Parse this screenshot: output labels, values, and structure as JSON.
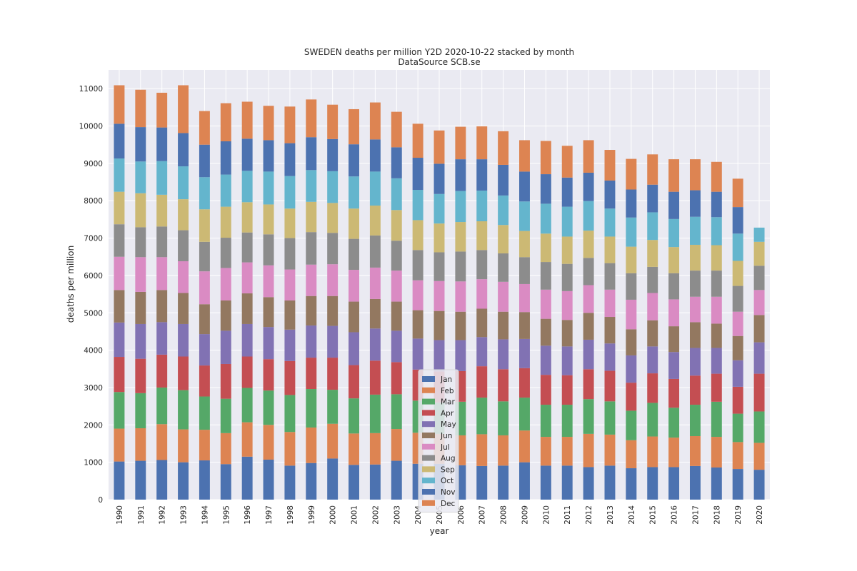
{
  "chart_data": {
    "type": "bar",
    "stacked": true,
    "title": "SWEDEN deaths per million Y2D 2020-10-22 stacked by month",
    "subtitle": "DataSource SCB.se",
    "xlabel": "year",
    "ylabel": "deaths per million",
    "ylim": [
      0,
      11500
    ],
    "yticks": [
      0,
      1000,
      2000,
      3000,
      4000,
      5000,
      6000,
      7000,
      8000,
      9000,
      10000,
      11000
    ],
    "grid": true,
    "legend_position": "bottom-center",
    "categories": [
      "1990",
      "1991",
      "1992",
      "1993",
      "1994",
      "1995",
      "1996",
      "1997",
      "1998",
      "1999",
      "2000",
      "2001",
      "2002",
      "2003",
      "2004",
      "2005",
      "2006",
      "2007",
      "2008",
      "2009",
      "2010",
      "2011",
      "2012",
      "2013",
      "2014",
      "2015",
      "2016",
      "2017",
      "2018",
      "2019",
      "2020"
    ],
    "series": [
      {
        "name": "Jan",
        "color": "#4c72b0",
        "values": [
          1020,
          1040,
          1060,
          1000,
          1050,
          950,
          1150,
          1070,
          910,
          980,
          1100,
          930,
          940,
          1040,
          960,
          960,
          920,
          900,
          910,
          1000,
          910,
          910,
          870,
          910,
          840,
          870,
          870,
          900,
          860,
          820,
          800
        ]
      },
      {
        "name": "Feb",
        "color": "#dd8452",
        "values": [
          880,
          870,
          960,
          880,
          820,
          830,
          920,
          930,
          900,
          950,
          930,
          840,
          840,
          850,
          830,
          800,
          800,
          850,
          810,
          850,
          770,
          770,
          890,
          830,
          750,
          820,
          790,
          800,
          820,
          720,
          720
        ]
      },
      {
        "name": "Mar",
        "color": "#55a868",
        "values": [
          980,
          940,
          980,
          1050,
          890,
          920,
          920,
          920,
          990,
          1030,
          910,
          940,
          1030,
          930,
          860,
          840,
          900,
          980,
          910,
          880,
          860,
          860,
          930,
          890,
          790,
          900,
          800,
          840,
          940,
          760,
          840
        ]
      },
      {
        "name": "Apr",
        "color": "#c44e52",
        "values": [
          940,
          920,
          880,
          900,
          830,
          930,
          840,
          840,
          910,
          840,
          860,
          890,
          910,
          860,
          830,
          830,
          820,
          840,
          860,
          790,
          800,
          790,
          800,
          820,
          750,
          790,
          770,
          780,
          750,
          720,
          1010
        ]
      },
      {
        "name": "May",
        "color": "#8172b3",
        "values": [
          920,
          930,
          870,
          870,
          840,
          890,
          870,
          860,
          840,
          860,
          850,
          880,
          860,
          840,
          830,
          840,
          830,
          780,
          800,
          780,
          780,
          770,
          790,
          730,
          730,
          720,
          720,
          740,
          690,
          710,
          840
        ]
      },
      {
        "name": "Jun",
        "color": "#937860",
        "values": [
          870,
          860,
          860,
          830,
          800,
          810,
          820,
          800,
          780,
          790,
          800,
          820,
          790,
          780,
          760,
          780,
          760,
          760,
          740,
          720,
          720,
          710,
          720,
          710,
          700,
          700,
          690,
          690,
          650,
          650,
          730
        ]
      },
      {
        "name": "Jul",
        "color": "#da8bc3",
        "values": [
          890,
          930,
          880,
          850,
          880,
          870,
          830,
          850,
          830,
          840,
          850,
          850,
          840,
          830,
          800,
          800,
          810,
          790,
          800,
          750,
          780,
          770,
          740,
          730,
          790,
          730,
          720,
          680,
          720,
          650,
          670
        ]
      },
      {
        "name": "Aug",
        "color": "#8c8c8c",
        "values": [
          870,
          800,
          820,
          830,
          790,
          810,
          800,
          830,
          840,
          870,
          840,
          830,
          860,
          800,
          810,
          770,
          800,
          780,
          760,
          720,
          740,
          730,
          730,
          710,
          710,
          700,
          700,
          700,
          700,
          690,
          650
        ]
      },
      {
        "name": "Sep",
        "color": "#ccb974",
        "values": [
          870,
          910,
          850,
          830,
          870,
          830,
          810,
          800,
          790,
          810,
          800,
          810,
          800,
          820,
          800,
          770,
          790,
          770,
          760,
          700,
          760,
          730,
          730,
          710,
          710,
          720,
          700,
          690,
          680,
          670,
          640
        ]
      },
      {
        "name": "Oct",
        "color": "#64b5cd",
        "values": [
          890,
          850,
          900,
          880,
          860,
          860,
          840,
          880,
          870,
          850,
          850,
          860,
          910,
          850,
          810,
          790,
          830,
          820,
          790,
          790,
          800,
          800,
          790,
          750,
          780,
          740,
          750,
          750,
          750,
          730,
          380
        ]
      },
      {
        "name": "Nov",
        "color": "#4c72b0",
        "values": [
          930,
          920,
          900,
          890,
          870,
          890,
          860,
          840,
          880,
          880,
          860,
          860,
          860,
          830,
          860,
          810,
          850,
          840,
          820,
          800,
          790,
          780,
          760,
          750,
          750,
          740,
          730,
          710,
          680,
          710,
          0
        ]
      },
      {
        "name": "Dec",
        "color": "#dd8452",
        "values": [
          1030,
          1000,
          930,
          1280,
          900,
          1020,
          990,
          920,
          980,
          1010,
          920,
          940,
          990,
          950,
          910,
          890,
          870,
          880,
          900,
          840,
          890,
          850,
          870,
          820,
          820,
          810,
          870,
          830,
          800,
          760,
          0
        ]
      }
    ]
  }
}
